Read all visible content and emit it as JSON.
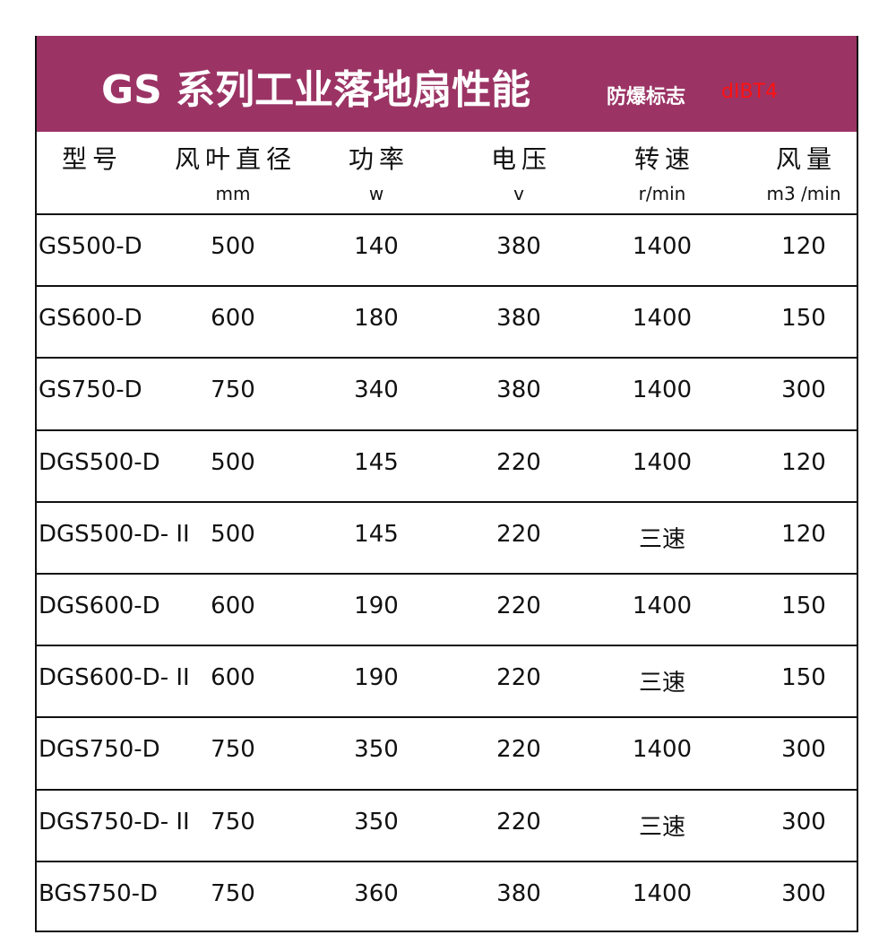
{
  "header": {
    "title": "GS 系列工业落地扇性能",
    "mark_label": "防爆标志",
    "mark_code": "dIBT4"
  },
  "table": {
    "columns": [
      {
        "name": "型号",
        "unit": null
      },
      {
        "name": "风叶直径",
        "unit": "mm"
      },
      {
        "name": "功率",
        "unit": "w"
      },
      {
        "name": "电压",
        "unit": "v"
      },
      {
        "name": "转速",
        "unit": "r/min"
      },
      {
        "name": "风量",
        "unit": "m3 /min"
      }
    ],
    "rows": [
      [
        "GS500-D",
        500,
        140,
        380,
        1400,
        120
      ],
      [
        "GS600-D",
        600,
        180,
        380,
        1400,
        150
      ],
      [
        "GS750-D",
        750,
        340,
        380,
        1400,
        300
      ],
      [
        "DGS500-D",
        500,
        145,
        220,
        1400,
        120
      ],
      [
        "DGS500-D- II",
        500,
        145,
        220,
        "三速",
        120
      ],
      [
        "DGS600-D",
        600,
        190,
        220,
        1400,
        150
      ],
      [
        "DGS600-D- II",
        600,
        190,
        220,
        "三速",
        150
      ],
      [
        "DGS750-D",
        750,
        350,
        220,
        1400,
        300
      ],
      [
        "DGS750-D- II",
        750,
        350,
        220,
        "三速",
        300
      ],
      [
        "BGS750-D",
        750,
        360,
        380,
        1400,
        300
      ]
    ]
  }
}
